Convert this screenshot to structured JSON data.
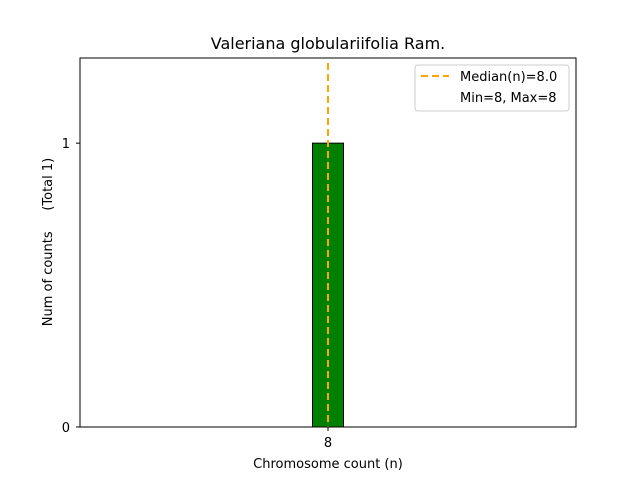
{
  "chart_data": {
    "type": "bar",
    "title": "Valeriana globulariifolia Ram.",
    "xlabel": "Chromosome count (n)",
    "ylabel": "Num of counts     (Total 1)",
    "categories": [
      8
    ],
    "values": [
      1
    ],
    "bar_width": 0.1,
    "xlim": [
      7.2,
      8.8
    ],
    "ylim": [
      0,
      1.3
    ],
    "xticks": [
      8
    ],
    "yticks": [
      0,
      1
    ],
    "bar_color": "#008000",
    "bar_edge_color": "#000000",
    "median_line": {
      "value": 8.0,
      "color": "#FFA500",
      "style": "dashed"
    },
    "grid": false,
    "legend": {
      "placement": "top-right",
      "entries": [
        "Median(n)=8.0",
        "Min=8, Max=8"
      ]
    }
  }
}
